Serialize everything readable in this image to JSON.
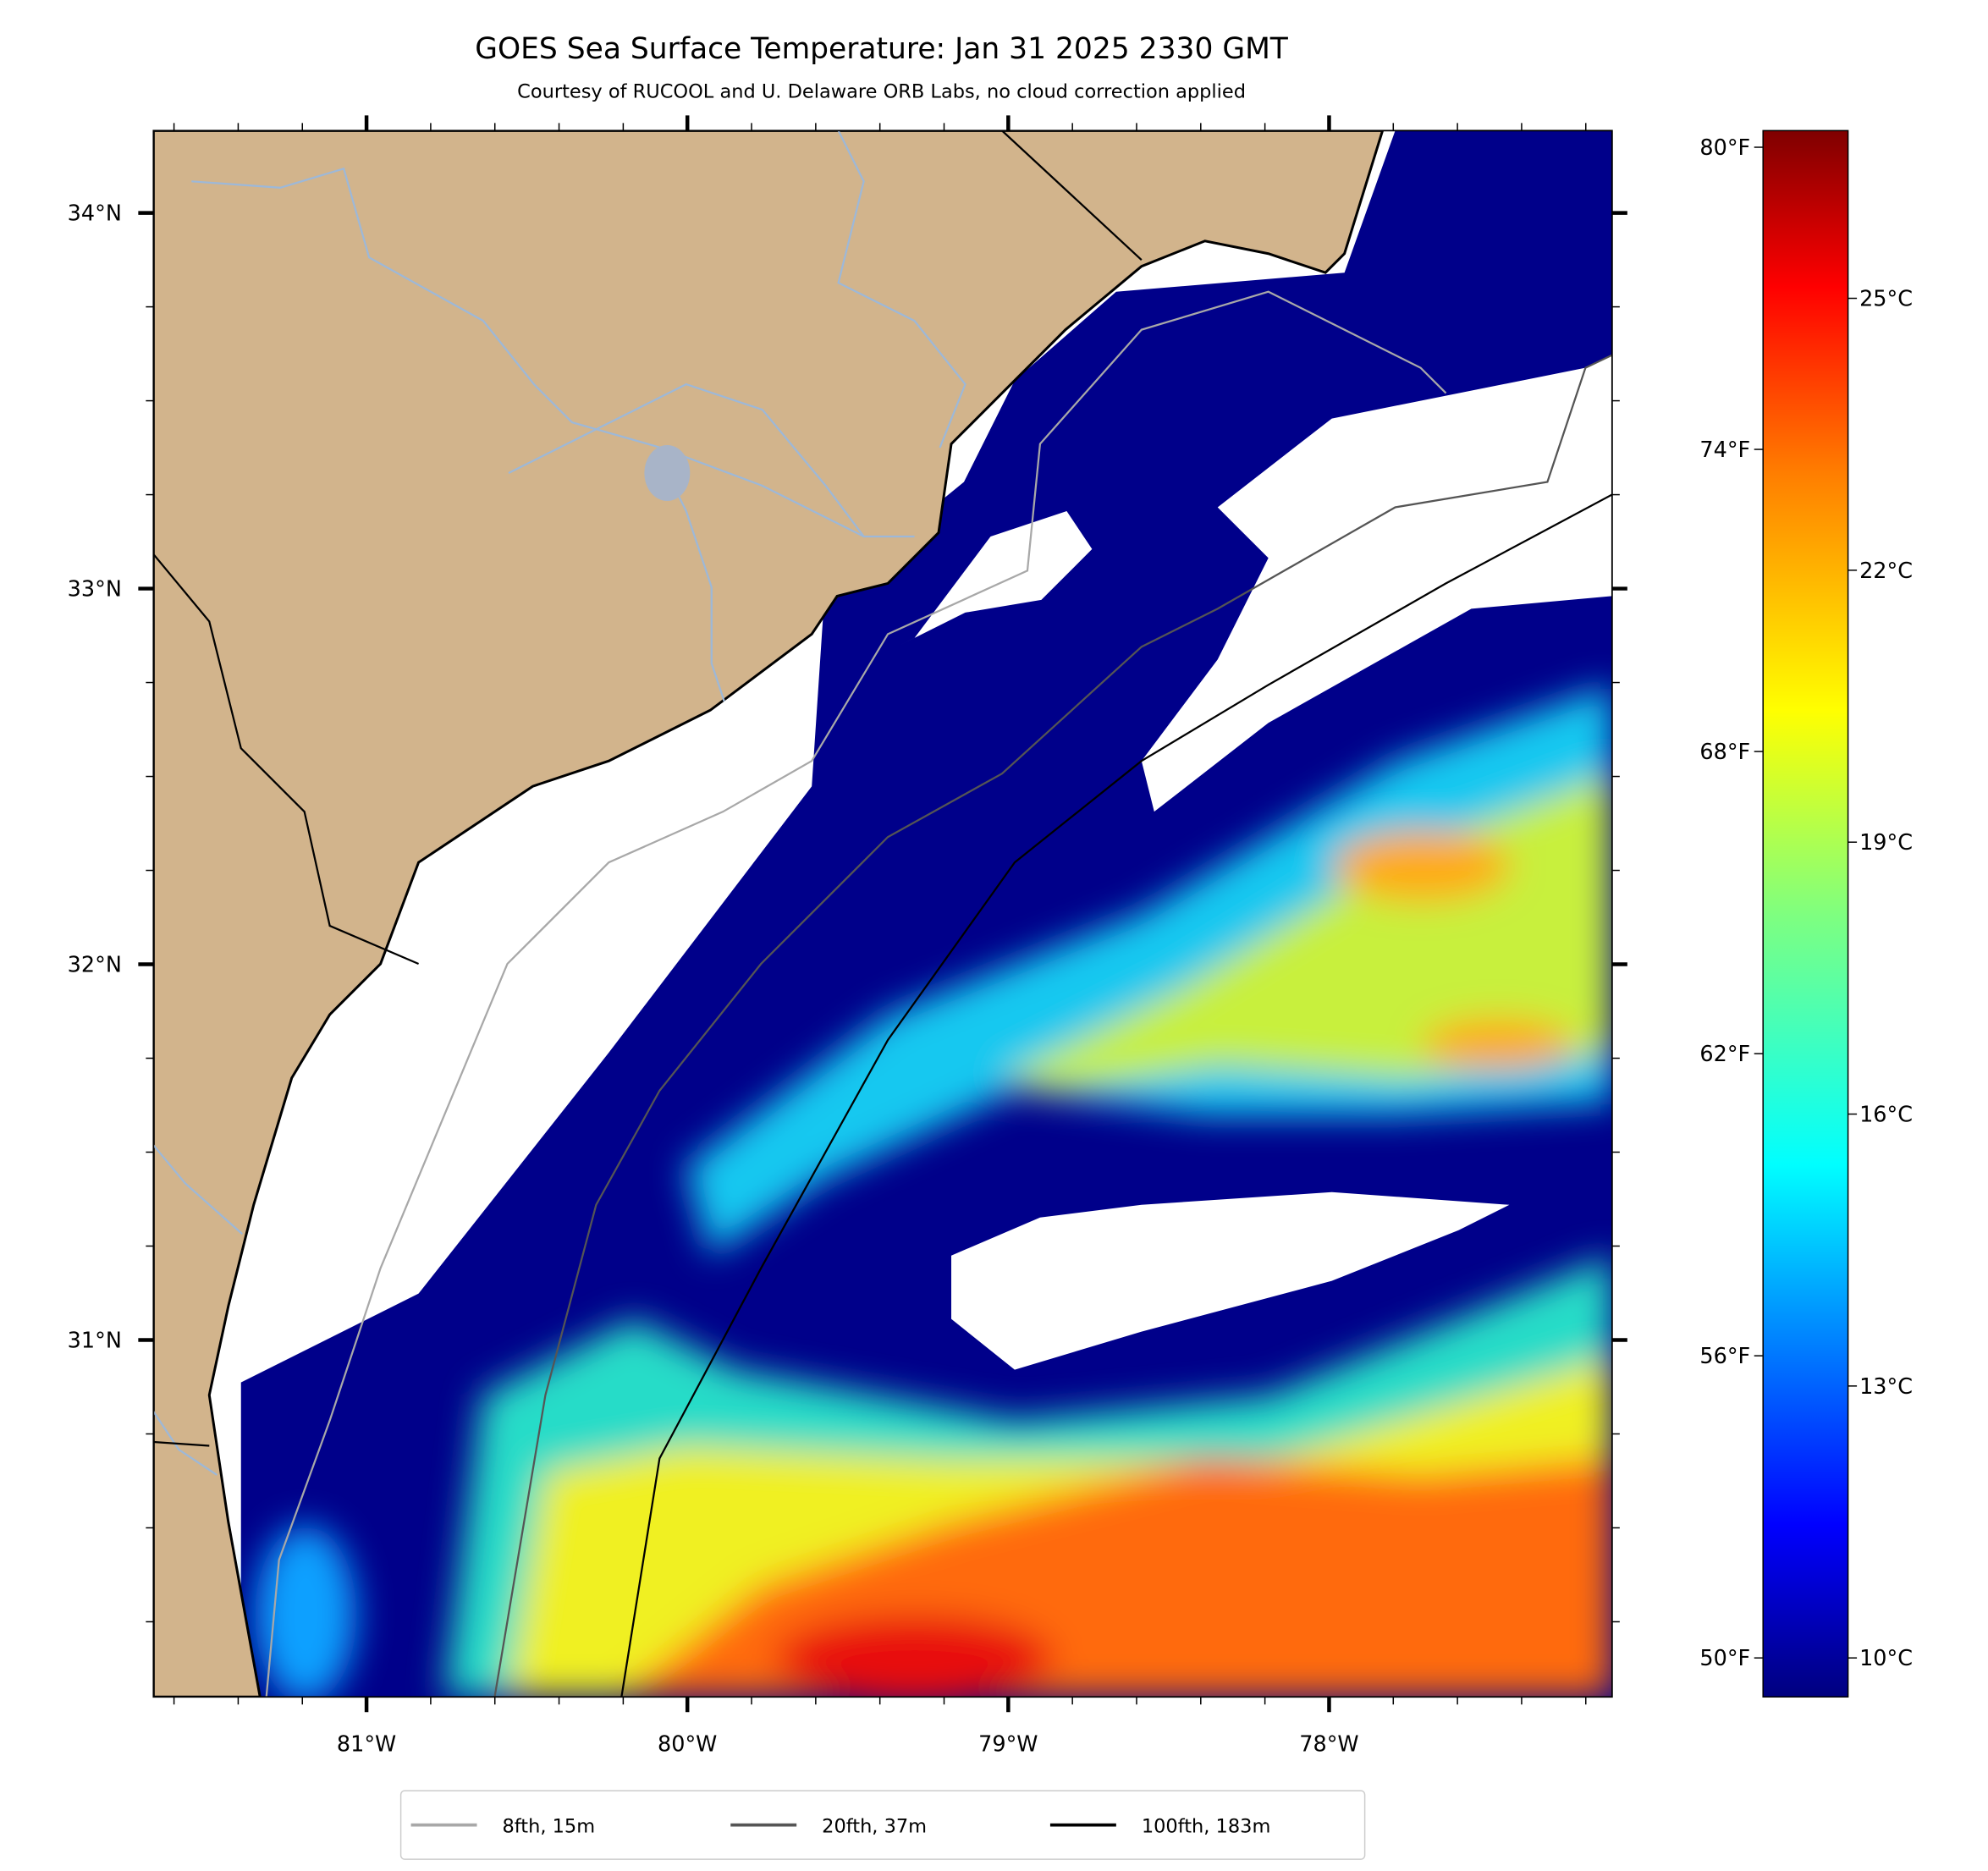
{
  "title": "GOES Sea Surface Temperature: Jan 31 2025 2330 GMT",
  "subtitle": "Courtesy of RUCOOL and U. Delaware ORB Labs, no cloud correction applied",
  "map_extent": {
    "lon": [
      -81.664,
      -77.118
    ],
    "lat": [
      30.05,
      34.219
    ]
  },
  "lat_ticks": [
    {
      "value": 34,
      "label": "34°N"
    },
    {
      "value": 33,
      "label": "33°N"
    },
    {
      "value": 32,
      "label": "32°N"
    },
    {
      "value": 31,
      "label": "31°N"
    }
  ],
  "lon_ticks": [
    {
      "value": -81,
      "label": "81°W"
    },
    {
      "value": -80,
      "label": "80°W"
    },
    {
      "value": -79,
      "label": "79°W"
    },
    {
      "value": -78,
      "label": "78°W"
    }
  ],
  "colorbar": {
    "range_c": [
      9.57,
      26.85
    ],
    "celsius_ticks": [
      {
        "value": 25,
        "label": "25°C"
      },
      {
        "value": 22,
        "label": "22°C"
      },
      {
        "value": 19,
        "label": "19°C"
      },
      {
        "value": 16,
        "label": "16°C"
      },
      {
        "value": 13,
        "label": "13°C"
      },
      {
        "value": 10,
        "label": "10°C"
      }
    ],
    "fahrenheit_ticks": [
      {
        "value": 80,
        "label": "80°F"
      },
      {
        "value": 74,
        "label": "74°F"
      },
      {
        "value": 68,
        "label": "68°F"
      },
      {
        "value": 62,
        "label": "62°F"
      },
      {
        "value": 56,
        "label": "56°F"
      },
      {
        "value": 50,
        "label": "50°F"
      }
    ],
    "colors": [
      "#00007f",
      "#0000ff",
      "#007fff",
      "#00ffff",
      "#7fff7f",
      "#ffff00",
      "#ff7f00",
      "#ff0000",
      "#7f0000"
    ]
  },
  "legend": [
    {
      "label": "8fth, 15m",
      "color": "#a8a8a8"
    },
    {
      "label": "20fth, 37m",
      "color": "#555555"
    },
    {
      "label": "100fth, 183m",
      "color": "#000000"
    }
  ],
  "colors": {
    "land": "#d2b48c",
    "river": "#9db8d8",
    "cloud": "#ffffff"
  }
}
